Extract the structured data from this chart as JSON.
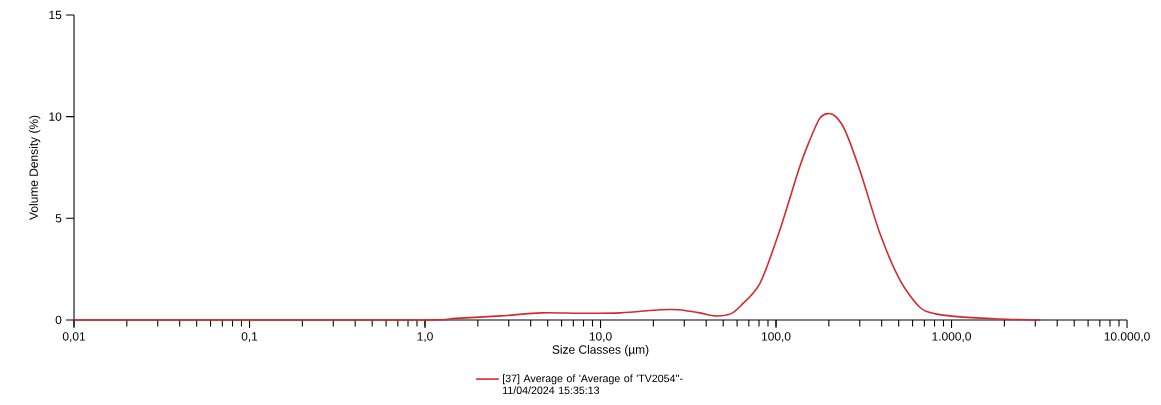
{
  "chart_data": {
    "type": "line",
    "xlabel": "Size Classes (µm)",
    "ylabel": "Volume Density (%)",
    "log": "x",
    "grid": false,
    "legend": "bottom",
    "marker": "none",
    "line_style": "solid",
    "xlim": [
      0.01,
      10000
    ],
    "ylim": [
      0,
      15
    ],
    "xticks": [
      {
        "value": 0.01,
        "label": "0,01"
      },
      {
        "value": 0.1,
        "label": "0,1"
      },
      {
        "value": 1,
        "label": "1,0"
      },
      {
        "value": 10,
        "label": "10,0"
      },
      {
        "value": 100,
        "label": "100,0"
      },
      {
        "value": 1000,
        "label": "1.000,0"
      },
      {
        "value": 10000,
        "label": "10.000,0"
      }
    ],
    "yticks": [
      0,
      5,
      10,
      15
    ],
    "series": [
      {
        "name": "[37] Average of 'Average of 'TV2054''-11/04/2024 15:35:13",
        "color": "#d42a2f",
        "x": [
          0.01,
          0.1,
          1.0,
          1.5,
          2.7,
          4.6,
          7.7,
          13,
          21.8,
          28,
          36.7,
          45,
          55,
          63,
          81,
          104,
          136,
          155,
          177,
          197,
          219,
          248,
          302,
          393,
          513,
          665,
          810,
          1120,
          1860,
          3200
        ],
        "values": [
          0,
          0,
          0,
          0.08,
          0.2,
          0.35,
          0.33,
          0.35,
          0.5,
          0.5,
          0.35,
          0.2,
          0.3,
          0.7,
          1.8,
          4.3,
          7.5,
          8.8,
          9.9,
          10.15,
          10.0,
          9.3,
          7.3,
          4.2,
          1.9,
          0.6,
          0.3,
          0.15,
          0.05,
          0
        ]
      }
    ]
  }
}
